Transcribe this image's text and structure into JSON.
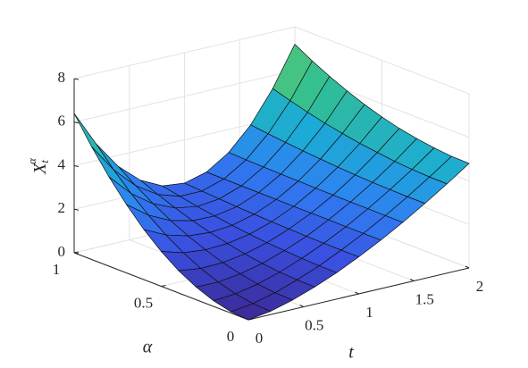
{
  "chart_data": {
    "type": "surface",
    "xlabel": "t",
    "ylabel": "α",
    "zlabel": {
      "base": "X",
      "sub": "t",
      "sup": "α"
    },
    "x": [
      0,
      0.2,
      0.4,
      0.6,
      0.8,
      1.0,
      1.2,
      1.4,
      1.6,
      1.8,
      2.0
    ],
    "y": [
      0,
      0.1,
      0.2,
      0.3,
      0.4,
      0.5,
      0.6,
      0.7,
      0.8,
      0.9,
      1.0
    ],
    "z": [
      [
        0,
        0.15,
        0.43,
        0.79,
        1.21,
        1.7,
        2.23,
        2.81,
        3.44,
        4.1,
        4.8
      ],
      [
        0.06,
        0.2,
        0.46,
        0.81,
        1.22,
        1.7,
        2.23,
        2.81,
        3.44,
        4.11,
        4.82
      ],
      [
        0.26,
        0.34,
        0.55,
        0.86,
        1.25,
        1.71,
        2.23,
        2.82,
        3.46,
        4.15,
        4.9
      ],
      [
        0.58,
        0.57,
        0.71,
        0.95,
        1.3,
        1.72,
        2.24,
        2.82,
        3.48,
        4.21,
        5.02
      ],
      [
        1.02,
        0.89,
        0.92,
        1.08,
        1.36,
        1.75,
        2.24,
        2.83,
        3.52,
        4.31,
        5.18
      ],
      [
        1.6,
        1.3,
        1.2,
        1.25,
        1.44,
        1.77,
        2.24,
        2.84,
        3.57,
        4.42,
        5.4
      ],
      [
        2.3,
        1.81,
        1.53,
        1.45,
        1.54,
        1.81,
        2.25,
        2.86,
        3.63,
        4.57,
        5.66
      ],
      [
        3.14,
        2.41,
        1.93,
        1.68,
        1.66,
        1.85,
        2.26,
        2.87,
        3.7,
        4.73,
        5.98
      ],
      [
        4.1,
        3.1,
        2.39,
        1.96,
        1.79,
        1.9,
        2.26,
        2.89,
        3.78,
        4.93,
        6.34
      ],
      [
        5.18,
        3.88,
        2.91,
        2.27,
        1.95,
        1.95,
        2.27,
        2.91,
        3.87,
        5.15,
        6.74
      ],
      [
        6.4,
        4.76,
        3.49,
        2.62,
        2.12,
        2.01,
        2.28,
        2.94,
        3.97,
        5.4,
        7.2
      ]
    ],
    "xlim": [
      0,
      2
    ],
    "xticks": [
      0,
      0.5,
      1,
      1.5,
      2
    ],
    "ylim": [
      0,
      1
    ],
    "yticks": [
      0,
      0.5,
      1
    ],
    "zlim": [
      0,
      8
    ],
    "zticks": [
      0,
      2,
      4,
      6,
      8
    ],
    "grid": true,
    "colormap": [
      "#3b2a98",
      "#3a4fe0",
      "#2f7ff2",
      "#1cabd6",
      "#33c08f",
      "#7cca5c"
    ],
    "edgecolor": "#111111"
  }
}
